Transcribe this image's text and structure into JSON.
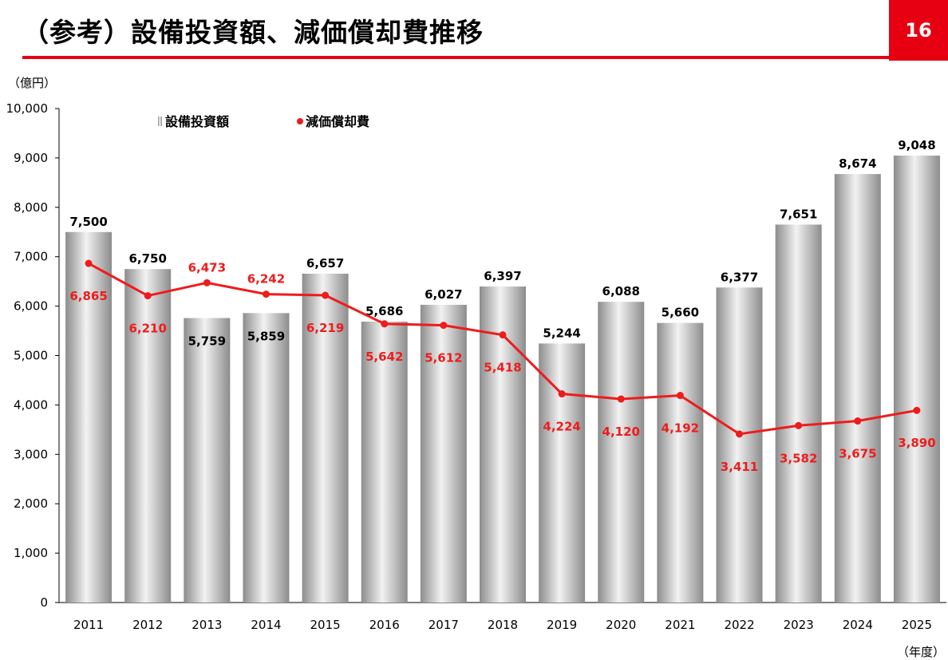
{
  "header": {
    "title": "（参考）設備投資額、減価償却費推移",
    "page_number": "16"
  },
  "colors": {
    "accent": "#e60012",
    "line": "#ee1c1c",
    "bar_dark": "#8c8c8c",
    "bar_light": "#f2f2f2"
  },
  "chart_data": {
    "type": "bar",
    "y_unit_label": "（億円）",
    "x_unit_label": "（年度）",
    "ylim": [
      0,
      10000
    ],
    "y_ticks": [
      "0",
      "1,000",
      "2,000",
      "3,000",
      "4,000",
      "5,000",
      "6,000",
      "7,000",
      "8,000",
      "9,000",
      "10,000"
    ],
    "categories": [
      "2011",
      "2012",
      "2013",
      "2014",
      "2015",
      "2016",
      "2017",
      "2018",
      "2019",
      "2020",
      "2021",
      "2022",
      "2023",
      "2024",
      "2025"
    ],
    "legend_position": "top-left",
    "series": [
      {
        "name": "設備投資額",
        "kind": "bar",
        "values": [
          7500,
          6750,
          5759,
          5859,
          6657,
          5686,
          6027,
          6397,
          5244,
          6088,
          5660,
          6377,
          7651,
          8674,
          9048
        ],
        "labels": [
          "7,500",
          "6,750",
          "5,759",
          "5,859",
          "6,657",
          "5,686",
          "6,027",
          "6,397",
          "5,244",
          "6,088",
          "5,660",
          "6,377",
          "7,651",
          "8,674",
          "9,048"
        ]
      },
      {
        "name": "減価償却費",
        "kind": "line",
        "values": [
          6865,
          6210,
          6473,
          6242,
          6219,
          5642,
          5612,
          5418,
          4224,
          4120,
          4192,
          3411,
          3582,
          3675,
          3890
        ],
        "labels": [
          "6,865",
          "6,210",
          "6,473",
          "6,242",
          "6,219",
          "5,642",
          "5,612",
          "5,418",
          "4,224",
          "4,120",
          "4,192",
          "3,411",
          "3,582",
          "3,675",
          "3,890"
        ]
      }
    ]
  }
}
